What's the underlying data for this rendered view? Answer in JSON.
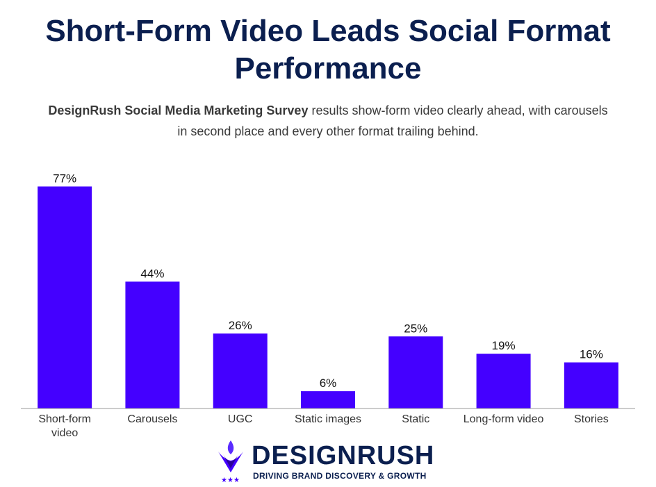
{
  "header": {
    "title": "Short-Form Video Leads Social Format Performance",
    "subtitle_bold": "DesignRush Social Media Marketing Survey",
    "subtitle_rest": " results show-form video clearly ahead, with carousels in second place and every other format trailing behind."
  },
  "chart_data": {
    "type": "bar",
    "categories": [
      "Short-form video",
      "Carousels",
      "UGC",
      "Static images",
      "Static",
      "Long-form video",
      "Stories"
    ],
    "values": [
      77,
      44,
      26,
      6,
      25,
      19,
      16
    ],
    "value_labels": [
      "77%",
      "44%",
      "26%",
      "6%",
      "25%",
      "19%",
      "16%"
    ],
    "ylim": [
      0,
      80
    ],
    "grid": false,
    "bar_color": "#4400ff"
  },
  "logo": {
    "name": "DESIGNRUSH",
    "tagline": "DRIVING BRAND DISCOVERY & GROWTH"
  }
}
